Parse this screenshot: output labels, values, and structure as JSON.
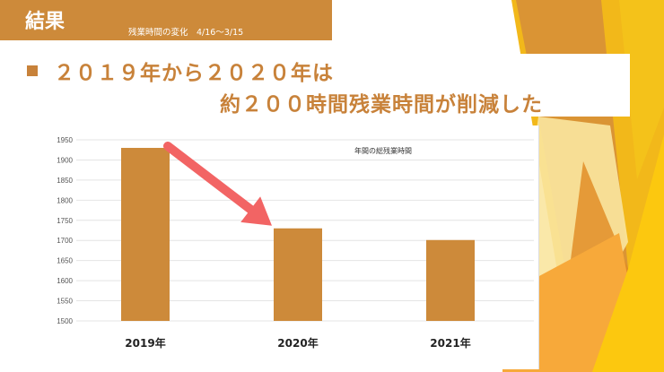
{
  "header": {
    "title": "結果",
    "subtitle": "残業時間の変化　4/16～3/15"
  },
  "headline": {
    "line1": "２０１９年から２０２０年は",
    "line2": "約２００時間残業時間が削減した"
  },
  "colors": {
    "accent": "#CD8A3A",
    "text_accent": "#C8823A",
    "bar": "#CD8A3A",
    "arrow": "#F26464"
  },
  "chart_data": {
    "type": "bar",
    "categories": [
      "2019年",
      "2020年",
      "2021年"
    ],
    "series": [
      {
        "name": "年間の総残業時間",
        "values": [
          1930,
          1730,
          1701
        ]
      }
    ],
    "ylim": [
      1500,
      1950
    ],
    "yticks": [
      1500,
      1550,
      1600,
      1650,
      1700,
      1750,
      1800,
      1850,
      1900,
      1950
    ],
    "grid": true,
    "legend_placement": "top-right",
    "annotation": "arrow from 2019年 bar to 2020年 bar"
  }
}
